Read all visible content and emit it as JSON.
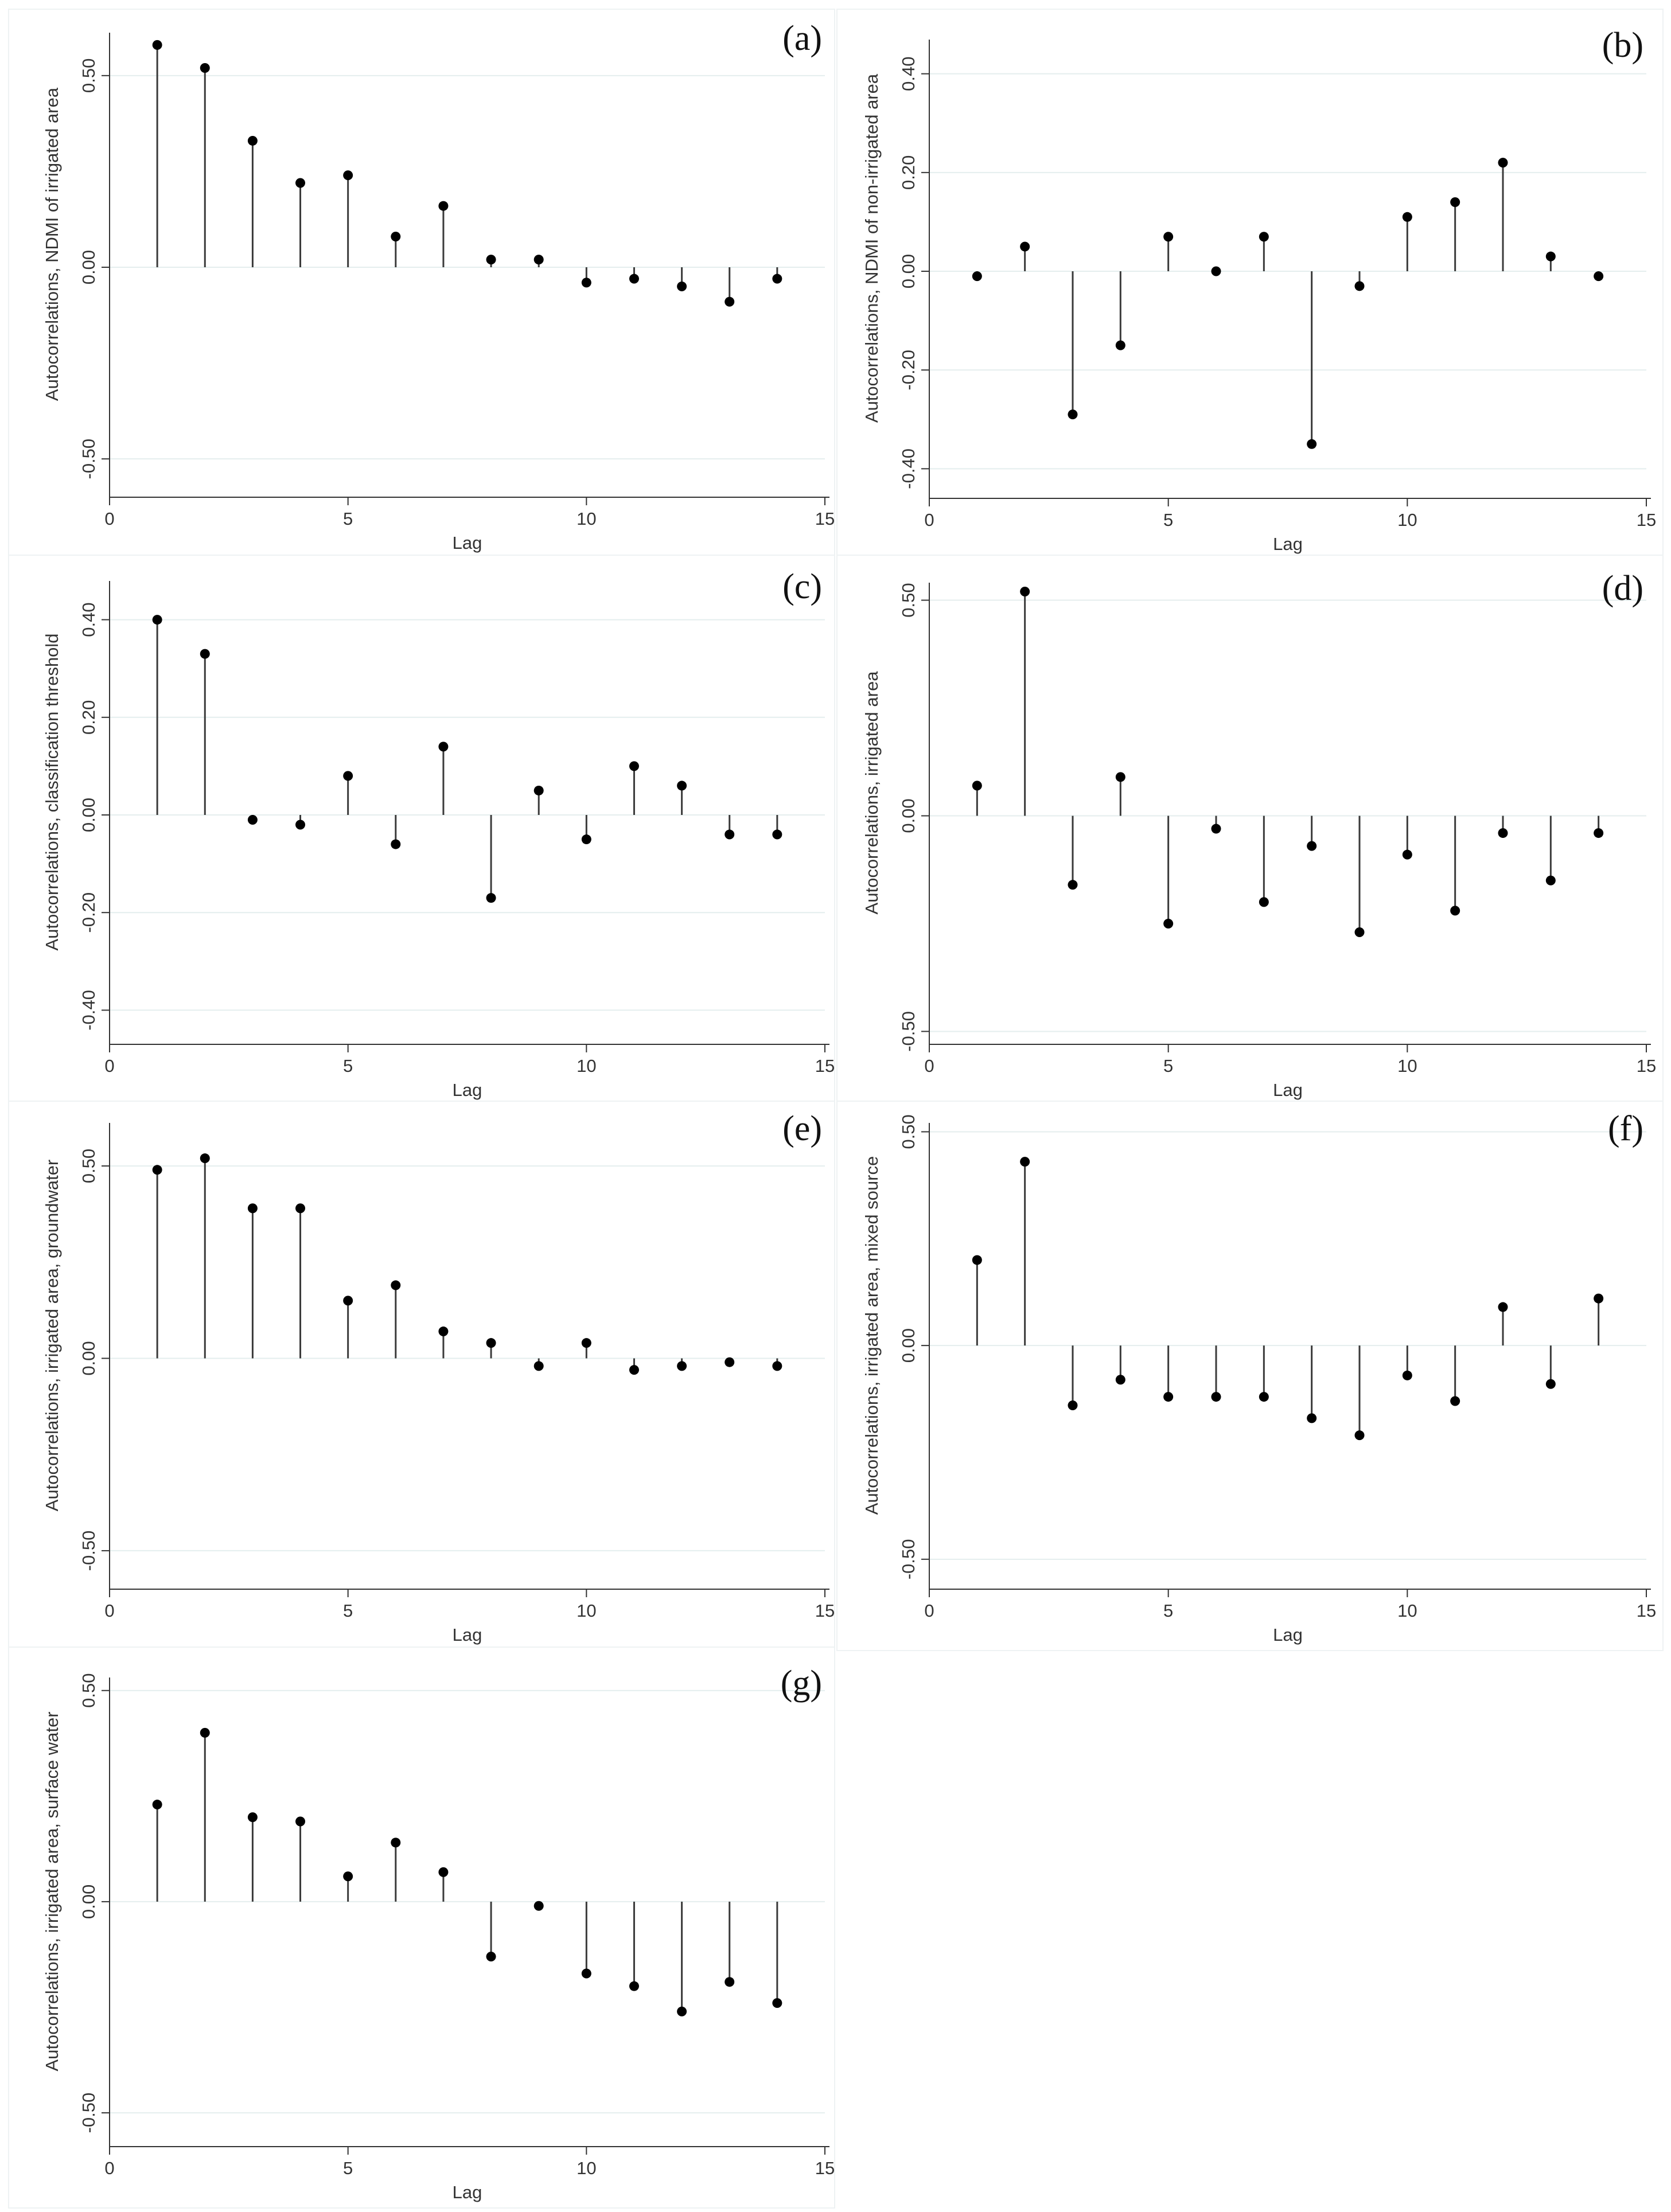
{
  "colors": {
    "stem": "#3a3a3a",
    "marker": "#000000",
    "grid": "#e4eeee",
    "axis": "#333333",
    "frame": "#eef2f3",
    "background": "#ffffff"
  },
  "chart_data": [
    {
      "id": "a",
      "panel_label": "(a)",
      "type": "stem",
      "xlabel": "Lag",
      "ylabel": "Autocorrelations, NDMI of irrigated area",
      "xlim": [
        0,
        15
      ],
      "ylim": [
        -0.6,
        0.6
      ],
      "xticks": [
        0,
        5,
        10,
        15
      ],
      "xtick_labels": [
        "0",
        "5",
        "10",
        "15"
      ],
      "yticks": [
        -0.5,
        0,
        0.5
      ],
      "ytick_labels": [
        "-0.50",
        "0.00",
        "0.50"
      ],
      "x": [
        1,
        2,
        3,
        4,
        5,
        6,
        7,
        8,
        9,
        10,
        11,
        12,
        13,
        14
      ],
      "values": [
        0.58,
        0.52,
        0.33,
        0.22,
        0.24,
        0.08,
        0.16,
        0.02,
        0.02,
        -0.04,
        -0.03,
        -0.05,
        -0.09,
        -0.03
      ]
    },
    {
      "id": "b",
      "panel_label": "(b)",
      "type": "stem",
      "xlabel": "Lag",
      "ylabel": "Autocorrelations, NDMI of non-irrigated area",
      "xlim": [
        0,
        15
      ],
      "ylim": [
        -0.46,
        0.46
      ],
      "xticks": [
        0,
        5,
        10,
        15
      ],
      "xtick_labels": [
        "0",
        "5",
        "10",
        "15"
      ],
      "yticks": [
        -0.4,
        -0.2,
        0,
        0.2,
        0.4
      ],
      "ytick_labels": [
        "-0.40",
        "-0.20",
        "0.00",
        "0.20",
        "0.40"
      ],
      "x": [
        1,
        2,
        3,
        4,
        5,
        6,
        7,
        8,
        9,
        10,
        11,
        12,
        13,
        14
      ],
      "values": [
        -0.01,
        0.05,
        -0.29,
        -0.15,
        0.07,
        0.0,
        0.07,
        -0.35,
        -0.03,
        0.11,
        0.14,
        0.22,
        0.03,
        -0.01
      ]
    },
    {
      "id": "c",
      "panel_label": "(c)",
      "type": "stem",
      "xlabel": "Lag",
      "ylabel": "Autocorrelations, classification threshold",
      "xlim": [
        0,
        15
      ],
      "ylim": [
        -0.47,
        0.47
      ],
      "xticks": [
        0,
        5,
        10,
        15
      ],
      "xtick_labels": [
        "0",
        "5",
        "10",
        "15"
      ],
      "yticks": [
        -0.4,
        -0.2,
        0,
        0.2,
        0.4
      ],
      "ytick_labels": [
        "-0.40",
        "-0.20",
        "0.00",
        "0.20",
        "0.40"
      ],
      "x": [
        1,
        2,
        3,
        4,
        5,
        6,
        7,
        8,
        9,
        10,
        11,
        12,
        13,
        14
      ],
      "values": [
        0.4,
        0.33,
        -0.01,
        -0.02,
        0.08,
        -0.06,
        0.14,
        -0.17,
        0.05,
        -0.05,
        0.1,
        0.06,
        -0.04,
        -0.04
      ]
    },
    {
      "id": "d",
      "panel_label": "(d)",
      "type": "stem",
      "xlabel": "Lag",
      "ylabel": "Autocorrelations, irrigated area",
      "xlim": [
        0,
        15
      ],
      "ylim": [
        -0.53,
        0.53
      ],
      "xticks": [
        0,
        5,
        10,
        15
      ],
      "xtick_labels": [
        "0",
        "5",
        "10",
        "15"
      ],
      "yticks": [
        -0.5,
        0,
        0.5
      ],
      "ytick_labels": [
        "-0.50",
        "0.00",
        "0.50"
      ],
      "x": [
        1,
        2,
        3,
        4,
        5,
        6,
        7,
        8,
        9,
        10,
        11,
        12,
        13,
        14
      ],
      "values": [
        0.07,
        0.52,
        -0.16,
        0.09,
        -0.25,
        -0.03,
        -0.2,
        -0.07,
        -0.27,
        -0.09,
        -0.22,
        -0.04,
        -0.15,
        -0.04
      ]
    },
    {
      "id": "e",
      "panel_label": "(e)",
      "type": "stem",
      "xlabel": "Lag",
      "ylabel": "Autocorrelations, irrigated area, groundwater",
      "xlim": [
        0,
        15
      ],
      "ylim": [
        -0.6,
        0.6
      ],
      "xticks": [
        0,
        5,
        10,
        15
      ],
      "xtick_labels": [
        "0",
        "5",
        "10",
        "15"
      ],
      "yticks": [
        -0.5,
        0,
        0.5
      ],
      "ytick_labels": [
        "-0.50",
        "0.00",
        "0.50"
      ],
      "x": [
        1,
        2,
        3,
        4,
        5,
        6,
        7,
        8,
        9,
        10,
        11,
        12,
        13,
        14
      ],
      "values": [
        0.49,
        0.52,
        0.39,
        0.39,
        0.15,
        0.19,
        0.07,
        0.04,
        -0.02,
        0.04,
        -0.03,
        -0.02,
        -0.01,
        -0.02
      ]
    },
    {
      "id": "f",
      "panel_label": "(f)",
      "type": "stem",
      "xlabel": "Lag",
      "ylabel": "Autocorrelations, irrigated area, mixed source",
      "xlim": [
        0,
        15
      ],
      "ylim": [
        -0.57,
        0.51
      ],
      "xticks": [
        0,
        5,
        10,
        15
      ],
      "xtick_labels": [
        "0",
        "5",
        "10",
        "15"
      ],
      "yticks": [
        -0.5,
        0,
        0.5
      ],
      "ytick_labels": [
        "-0.50",
        "0.00",
        "0.50"
      ],
      "x": [
        1,
        2,
        3,
        4,
        5,
        6,
        7,
        8,
        9,
        10,
        11,
        12,
        13,
        14
      ],
      "values": [
        0.2,
        0.43,
        -0.14,
        -0.08,
        -0.12,
        -0.12,
        -0.12,
        -0.17,
        -0.21,
        -0.07,
        -0.13,
        0.09,
        -0.09,
        0.11
      ]
    },
    {
      "id": "g",
      "panel_label": "(g)",
      "type": "stem",
      "xlabel": "Lag",
      "ylabel": "Autocorrelations, irrigated area, surface water",
      "xlim": [
        0,
        15
      ],
      "ylim": [
        -0.58,
        0.52
      ],
      "xticks": [
        0,
        5,
        10,
        15
      ],
      "xtick_labels": [
        "0",
        "5",
        "10",
        "15"
      ],
      "yticks": [
        -0.5,
        0,
        0.5
      ],
      "ytick_labels": [
        "-0.50",
        "0.00",
        "0.50"
      ],
      "x": [
        1,
        2,
        3,
        4,
        5,
        6,
        7,
        8,
        9,
        10,
        11,
        12,
        13,
        14
      ],
      "values": [
        0.23,
        0.4,
        0.2,
        0.19,
        0.06,
        0.14,
        0.07,
        -0.13,
        -0.01,
        -0.17,
        -0.2,
        -0.26,
        -0.19,
        -0.24
      ]
    }
  ]
}
